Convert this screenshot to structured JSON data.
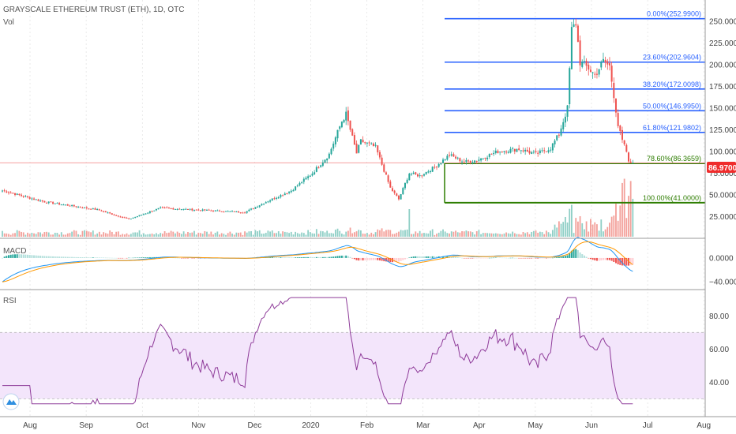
{
  "header": {
    "title": "GRAYSCALE ETHEREUM TRUST (ETH), 1D, OTC",
    "vol_label": "Vol"
  },
  "panels": {
    "macd_label": "MACD",
    "rsi_label": "RSI"
  },
  "price_badge": {
    "value": "86.9700",
    "color": "#ef2c2c"
  },
  "colors": {
    "up": "#26a69a",
    "down": "#ef5350",
    "upVol": "#8fcfc6",
    "downVol": "#f3a09a",
    "fib": "#2962ff",
    "fibGreen": "#2d7d00",
    "macd": "#2196f3",
    "signal": "#ff9800",
    "rsi": "#8e3b99",
    "rsiBand": "#f3e5fb",
    "priceLine": "#f4a0a0",
    "grid": "#d6d6d6"
  },
  "logo_icon": "tradingview-icon",
  "chart_data": [
    {
      "type": "candlestick",
      "title": "GRAYSCALE ETHEREUM TRUST (ETH), 1D, OTC",
      "x_tick_labels": [
        "Aug",
        "Sep",
        "Oct",
        "Nov",
        "Dec",
        "2020",
        "Feb",
        "Mar",
        "Apr",
        "May",
        "Jun",
        "Jul",
        "Aug"
      ],
      "y_tick_labels": [
        "25.0000",
        "50.0000",
        "75.0000",
        "100.0000",
        "125.0000",
        "150.0000",
        "175.0000",
        "200.0000",
        "225.0000",
        "250.0000"
      ],
      "ylim": [
        0,
        265
      ],
      "last_price": 86.97,
      "fibonacci_levels": [
        {
          "label": "0.00%(252.9900)",
          "value": 252.99
        },
        {
          "label": "23.60%(202.9604)",
          "value": 202.9604
        },
        {
          "label": "38.20%(172.0098)",
          "value": 172.0098
        },
        {
          "label": "50.00%(146.9950)",
          "value": 146.995
        },
        {
          "label": "61.80%(121.9802)",
          "value": 121.9802
        },
        {
          "label": "78.60%(86.3659)",
          "value": 86.3659
        },
        {
          "label": "100.00%(41.0000)",
          "value": 41.0
        }
      ],
      "anchors": [
        [
          0,
          55
        ],
        [
          20,
          42
        ],
        [
          45,
          33
        ],
        [
          60,
          22
        ],
        [
          75,
          35
        ],
        [
          90,
          33
        ],
        [
          115,
          30
        ],
        [
          125,
          42
        ],
        [
          137,
          55
        ],
        [
          147,
          75
        ],
        [
          155,
          97
        ],
        [
          161,
          135
        ],
        [
          163,
          143
        ],
        [
          168,
          98
        ],
        [
          170,
          112
        ],
        [
          177,
          105
        ],
        [
          180,
          85
        ],
        [
          184,
          58
        ],
        [
          188,
          45
        ],
        [
          193,
          75
        ],
        [
          198,
          72
        ],
        [
          205,
          82
        ],
        [
          212,
          96
        ],
        [
          219,
          88
        ],
        [
          225,
          90
        ],
        [
          235,
          100
        ],
        [
          245,
          103
        ],
        [
          253,
          97
        ],
        [
          260,
          104
        ],
        [
          264,
          120
        ],
        [
          268,
          150
        ],
        [
          270,
          240
        ],
        [
          272,
          248
        ],
        [
          274,
          203
        ],
        [
          278,
          196
        ],
        [
          281,
          188
        ],
        [
          285,
          204
        ],
        [
          288,
          198
        ],
        [
          290,
          165
        ],
        [
          292,
          130
        ],
        [
          294,
          112
        ],
        [
          296,
          100
        ],
        [
          297,
          87
        ]
      ],
      "series": [
        {
          "name": "Vol"
        },
        {
          "name": "MACD",
          "ylim": [
            -45,
            25
          ],
          "y_tick_labels": [
            "0.0000",
            "−40.0000"
          ]
        },
        {
          "name": "RSI",
          "ylim": [
            25,
            92
          ],
          "y_tick_labels": [
            "40.00",
            "60.00",
            "80.00"
          ],
          "band": [
            30,
            70
          ]
        }
      ]
    }
  ]
}
